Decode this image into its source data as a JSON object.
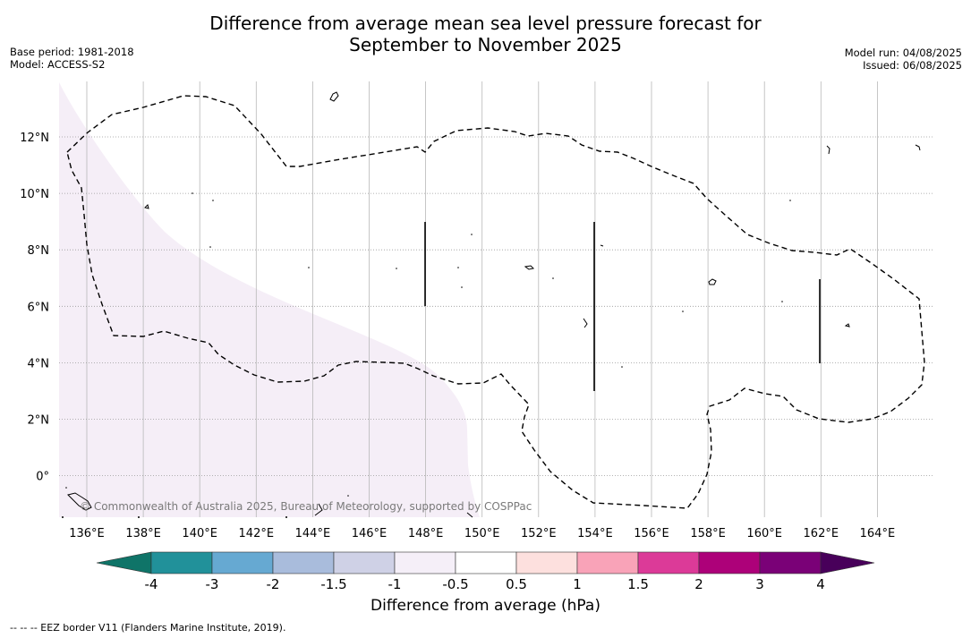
{
  "header": {
    "title_line1": "Difference from average mean sea level pressure forecast for",
    "title_line2": "September to November 2025",
    "base_period": "Base period: 1981-2018",
    "model": "Model: ACCESS-S2",
    "model_run": "Model run: 04/08/2025",
    "issued": "Issued: 06/08/2025"
  },
  "map": {
    "lon_ticks": [
      "136°E",
      "138°E",
      "140°E",
      "142°E",
      "144°E",
      "146°E",
      "148°E",
      "150°E",
      "152°E",
      "154°E",
      "156°E",
      "158°E",
      "160°E",
      "162°E",
      "164°E"
    ],
    "lat_ticks": [
      "12°N",
      "10°N",
      "8°N",
      "6°N",
      "4°N",
      "2°N",
      "0°"
    ],
    "copyright": "© Commonwealth of Australia 2025, Bureau of Meteorology, supported by COSPPac",
    "shaded_region_color": "#f5eef7"
  },
  "colorbar": {
    "labels": [
      "-4",
      "-3",
      "-2",
      "-1.5",
      "-1",
      "-0.5",
      "0.5",
      "1",
      "1.5",
      "2",
      "3",
      "4"
    ],
    "colors": [
      "#0f7468",
      "#21919a",
      "#66a9d2",
      "#a9bcdc",
      "#cfd1e6",
      "#f5eff8",
      "#ffffff",
      "#fde0de",
      "#f9a3b8",
      "#dc3a98",
      "#ad0179",
      "#7a0177",
      "#48005a"
    ],
    "title": "Difference from average (hPa)"
  },
  "footnote": "--  --  -- EEZ border V11 (Flanders Marine Institute, 2019)."
}
